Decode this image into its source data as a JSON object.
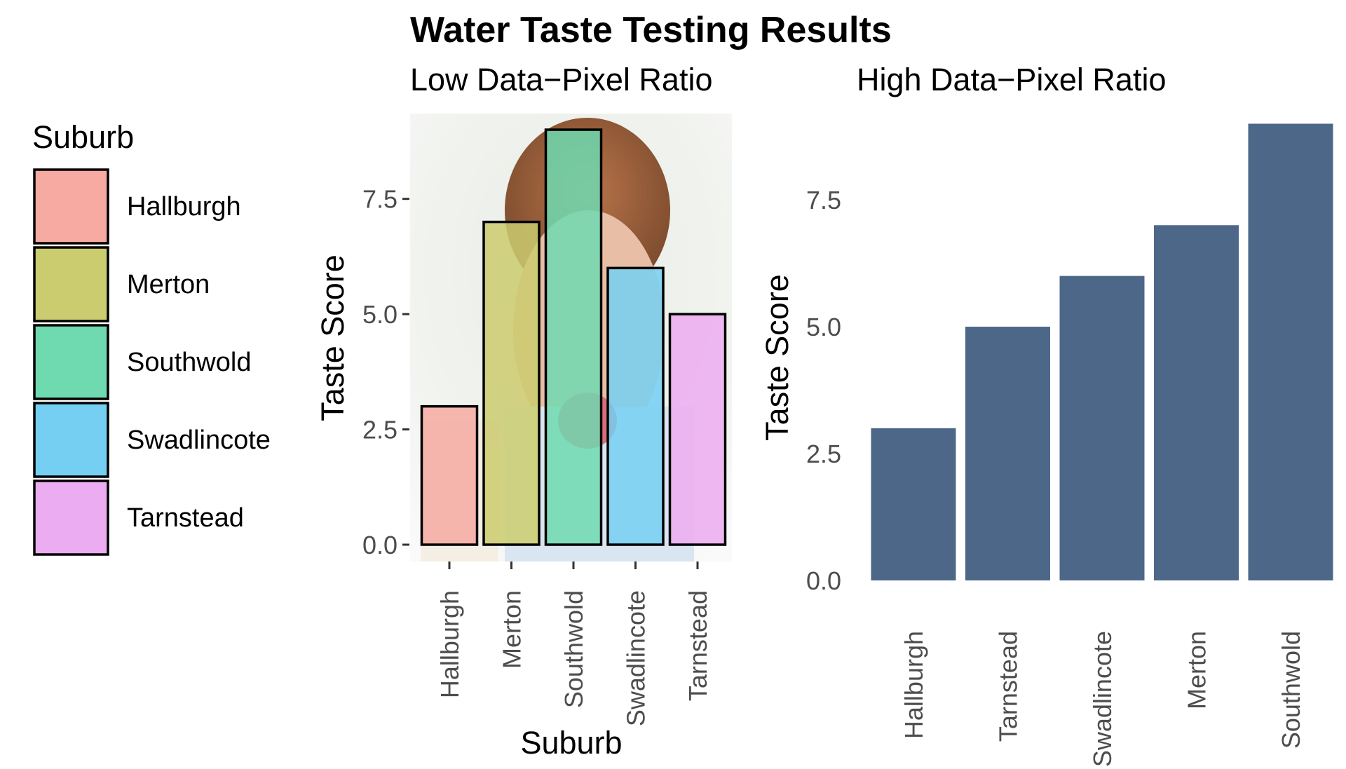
{
  "title": "Water Taste Testing Results",
  "colors": {
    "Hallburgh": "#f6aaa2",
    "Merton": "#cbcb6f",
    "Southwold": "#6fd9b0",
    "Swadlincote": "#74cff2",
    "Tarnstead": "#ecacf1",
    "high_bar": "#4d6789"
  },
  "legend": {
    "title": "Suburb",
    "items": [
      "Hallburgh",
      "Merton",
      "Southwold",
      "Swadlincote",
      "Tarnstead"
    ]
  },
  "chart_data": [
    {
      "type": "bar",
      "subtitle": "Low Data−Pixel Ratio",
      "xlabel": "Suburb",
      "ylabel": "Taste Score",
      "categories": [
        "Hallburgh",
        "Merton",
        "Southwold",
        "Swadlincote",
        "Tarnstead"
      ],
      "values": [
        3,
        7,
        9,
        6,
        5
      ],
      "yticks": [
        "0.0",
        "2.5",
        "5.0",
        "7.5"
      ],
      "ylim": [
        0,
        9.35
      ],
      "background": "photo of a child tasting water",
      "legend": "left"
    },
    {
      "type": "bar",
      "subtitle": "High Data−Pixel Ratio",
      "xlabel": "",
      "ylabel": "Taste Score",
      "categories": [
        "Hallburgh",
        "Tarnstead",
        "Swadlincote",
        "Merton",
        "Southwold"
      ],
      "values": [
        3,
        5,
        6,
        7,
        9
      ],
      "yticks": [
        "0.0",
        "2.5",
        "5.0",
        "7.5"
      ],
      "ylim": [
        0,
        9.2
      ],
      "grid": false
    }
  ]
}
